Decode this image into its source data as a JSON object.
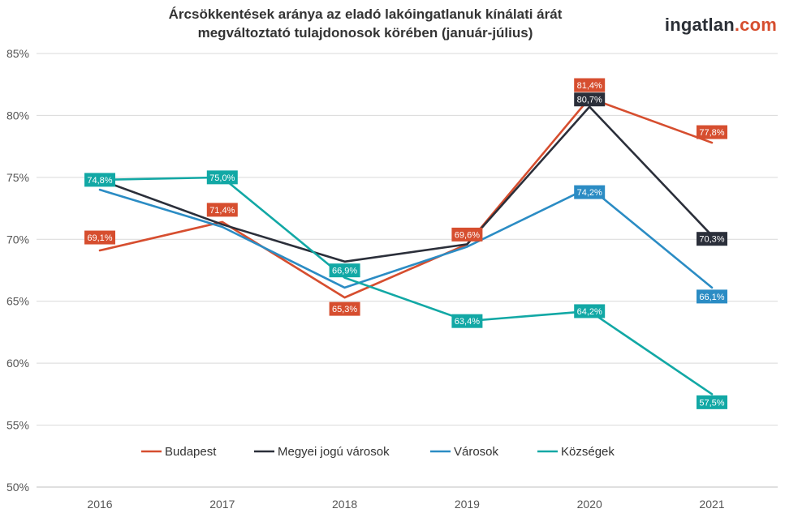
{
  "header": {
    "title_line1": "Árcsökkentések aránya az eladó lakóingatlanuk kínálati árát",
    "title_line2": "megváltoztató tulajdonosok körében (január-július)",
    "logo_part1": "ingatlan",
    "logo_part2": ".com"
  },
  "chart_data": {
    "type": "line",
    "title": "Árcsökkentések aránya az eladó lakóingatlanuk kínálati árát megváltoztató tulajdonosok körében (január-július)",
    "categories": [
      "2016",
      "2017",
      "2018",
      "2019",
      "2020",
      "2021"
    ],
    "ylim": [
      50,
      85
    ],
    "yticks": [
      50,
      55,
      60,
      65,
      70,
      75,
      80,
      85
    ],
    "ytick_labels": [
      "50%",
      "55%",
      "60%",
      "65%",
      "70%",
      "75%",
      "80%",
      "85%"
    ],
    "grid": true,
    "legend_position": "bottom",
    "series": [
      {
        "name": "Budapest",
        "color": "#d64e2f",
        "values": [
          69.1,
          71.4,
          65.3,
          69.6,
          81.4,
          77.8
        ],
        "labels": [
          "69,1%",
          "71,4%",
          "65,3%",
          "69,6%",
          "81,4%",
          "77,8%"
        ],
        "label_shown": [
          true,
          true,
          true,
          true,
          true,
          true
        ]
      },
      {
        "name": "Megyei jogú városok",
        "color": "#2b2f3a",
        "values": [
          74.8,
          71.2,
          68.2,
          69.6,
          80.7,
          70.3
        ],
        "labels": [
          "",
          "",
          "",
          "",
          "80,7%",
          "70,3%"
        ],
        "label_shown": [
          false,
          false,
          false,
          false,
          true,
          true
        ]
      },
      {
        "name": "Városok",
        "color": "#2b8cc4",
        "values": [
          74.0,
          71.0,
          66.1,
          69.4,
          74.2,
          66.1
        ],
        "labels": [
          "",
          "",
          "",
          "",
          "74,2%",
          "66,1%"
        ],
        "label_shown": [
          false,
          false,
          false,
          false,
          true,
          true
        ]
      },
      {
        "name": "Községek",
        "color": "#12a8a5",
        "values": [
          74.8,
          75.0,
          66.9,
          63.4,
          64.2,
          57.5
        ],
        "labels": [
          "74,8%",
          "75,0%",
          "66,9%",
          "63,4%",
          "64,2%",
          "57,5%"
        ],
        "label_shown": [
          true,
          true,
          true,
          true,
          true,
          true
        ]
      }
    ]
  }
}
